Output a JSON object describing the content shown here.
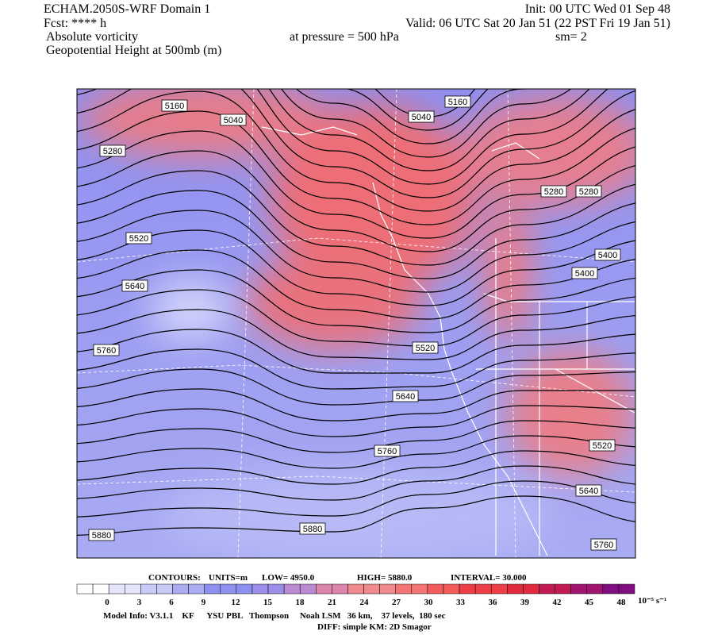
{
  "header": {
    "left": [
      "ECHAM.2050S-WRF Domain 1",
      "Fcst: **** h",
      "Absolute vorticity",
      "Geopotential Height at 500mb (m)"
    ],
    "init": "Init: 00 UTC Wed 01 Sep 48",
    "valid": "Valid: 06 UTC Sat 20 Jan 51 (22 PST Fri 19 Jan 51)",
    "pressure": "at pressure =  500 hPa",
    "sm": "sm= 2"
  },
  "map": {
    "contour_labels": [
      5160,
      5040,
      5040,
      5160,
      5280,
      5280,
      5280,
      5520,
      5400,
      5400,
      5640,
      5760,
      5520,
      5640,
      5760,
      5520,
      5640,
      5880,
      5880,
      5760
    ]
  },
  "footer": {
    "contours": [
      "CONTOURS:",
      "UNITS=m",
      "LOW=   4950.0",
      "HIGH=  5880.0",
      "INTERVAL=    30.000"
    ],
    "colorbar_ticks": [
      0,
      3,
      6,
      9,
      12,
      15,
      18,
      21,
      24,
      27,
      30,
      33,
      36,
      39,
      42,
      45,
      48
    ],
    "colorbar_unit": "10⁻⁵ s⁻¹",
    "model_info": "Model Info: V3.1.1    KF      YSU PBL   Thompson     Noah LSM   36 km,    37 levels,  180 sec",
    "diff": "DIFF: simple KM: 2D Smagor"
  }
}
